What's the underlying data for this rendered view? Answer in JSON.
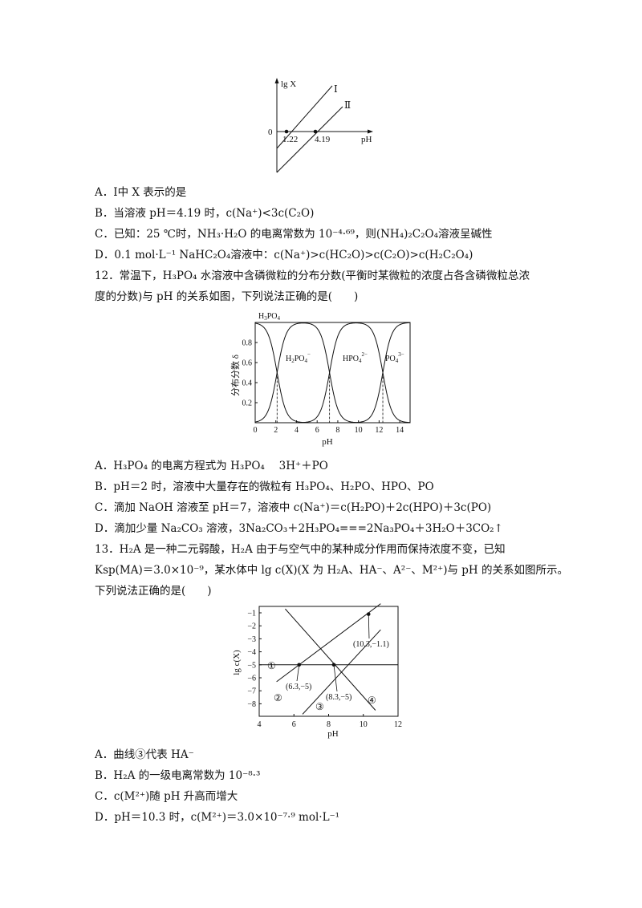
{
  "q11": {
    "fig": {
      "y_label": "lg X",
      "line1_label": "Ⅰ",
      "line2_label": "Ⅱ",
      "origin_label": "0",
      "tick1": "1.22",
      "tick2": "4.19",
      "x_label": "pH"
    },
    "options": [
      "A．Ⅰ中 X 表示的是",
      "B．当溶液 pH＝4.19 时，c(Na⁺)<3c(C₂O)",
      "C．已知：25 ℃时，NH₃·H₂O 的电离常数为 10⁻⁴·⁶⁹，则(NH₄)₂C₂O₄溶液呈碱性",
      "D．0.1 mol·L⁻¹ NaHC₂O₄溶液中：c(Na⁺)>c(HC₂O)>c(C₂O)>c(H₂C₂O₄)"
    ]
  },
  "q12": {
    "stem_line1": "12．常温下，H₃PO₄ 水溶液中含磷微粒的分布分数(平衡时某微粒的浓度占各含磷微粒总浓",
    "stem_line2": "度的分数)与 pH 的关系如图，下列说法正确的是(　　)",
    "options": [
      "A．H₃PO₄ 的电离方程式为 H₃PO₄　 3H⁺＋PO",
      "B．pH＝2 时，溶液中大量存在的微粒有 H₃PO₄、H₂PO、HPO、PO",
      "C．滴加 NaOH 溶液至 pH＝7，溶液中 c(Na⁺)＝c(H₂PO)＋2c(HPO)＋3c(PO)",
      "D．滴加少量 Na₂CO₃ 溶液，3Na₂CO₃＋2H₃PO₄===2Na₃PO₄＋3H₂O＋3CO₂↑"
    ]
  },
  "q13": {
    "stem_line1": "13．H₂A 是一种二元弱酸，H₂A 由于与空气中的某种成分作用而保持浓度不变，已知",
    "stem_line2": "Ksp(MA)＝3.0×10⁻⁹，某水体中 lg c(X)(X 为 H₂A、HA⁻、A²⁻、M²⁺)与 pH 的关系如图所示。",
    "stem_line3": "下列说法正确的是(　　)",
    "options": [
      "A．曲线③代表 HA⁻",
      "B．H₂A 的一级电离常数为 10⁻⁸·³",
      "C．c(M²⁺)随 pH 升高而增大",
      "D．pH＝10.3 时，c(M²⁺)＝3.0×10⁻⁷·⁹ mol·L⁻¹"
    ]
  },
  "chart_data": [
    {
      "type": "line",
      "title": "",
      "xlabel": "pH",
      "ylabel": "lg X",
      "x_ticks": [
        "1.22",
        "4.19"
      ],
      "series": [
        {
          "name": "Ⅰ",
          "x_intercept": 1.22
        },
        {
          "name": "Ⅱ",
          "x_intercept": 4.19
        }
      ]
    },
    {
      "type": "line",
      "title": "",
      "xlabel": "pH",
      "ylabel": "分布分数 δ",
      "xlim": [
        0,
        15
      ],
      "ylim": [
        0,
        1
      ],
      "x_ticks": [
        0,
        2,
        4,
        6,
        8,
        10,
        12,
        14
      ],
      "y_ticks": [
        0.2,
        0.4,
        0.6,
        0.8
      ],
      "pKa": [
        2.12,
        7.2,
        12.36
      ],
      "series": [
        {
          "name": "H₃PO₄"
        },
        {
          "name": "H₂PO₄⁻"
        },
        {
          "name": "HPO₄²⁻"
        },
        {
          "name": "PO₄³⁻"
        }
      ]
    },
    {
      "type": "line",
      "title": "",
      "xlabel": "pH",
      "ylabel": "lg c(X)",
      "xlim": [
        4,
        12
      ],
      "ylim": [
        -9,
        -1
      ],
      "x_ticks": [
        4,
        6,
        8,
        10,
        12
      ],
      "y_ticks": [
        -1,
        -2,
        -3,
        -4,
        -5,
        -6,
        -7,
        -8
      ],
      "series": [
        {
          "name": "①",
          "points": [
            [
              4,
              -5
            ],
            [
              12,
              -5
            ]
          ]
        },
        {
          "name": "②",
          "points": [
            [
              5.0,
              -6.3
            ],
            [
              11.0,
              -0.3
            ]
          ]
        },
        {
          "name": "③",
          "points": [
            [
              6.5,
              -8.8
            ],
            [
              11.0,
              -2.3
            ]
          ]
        },
        {
          "name": "④",
          "points": [
            [
              5.5,
              -0.7
            ],
            [
              10.7,
              -8.5
            ]
          ]
        }
      ],
      "annotations": [
        {
          "point": [
            6.3,
            -5
          ],
          "label": "(6.3,−5)"
        },
        {
          "point": [
            8.3,
            -5
          ],
          "label": "(8.3,−5)"
        },
        {
          "point": [
            10.3,
            -1.1
          ],
          "label": "(10.3,−1.1)"
        }
      ]
    }
  ]
}
